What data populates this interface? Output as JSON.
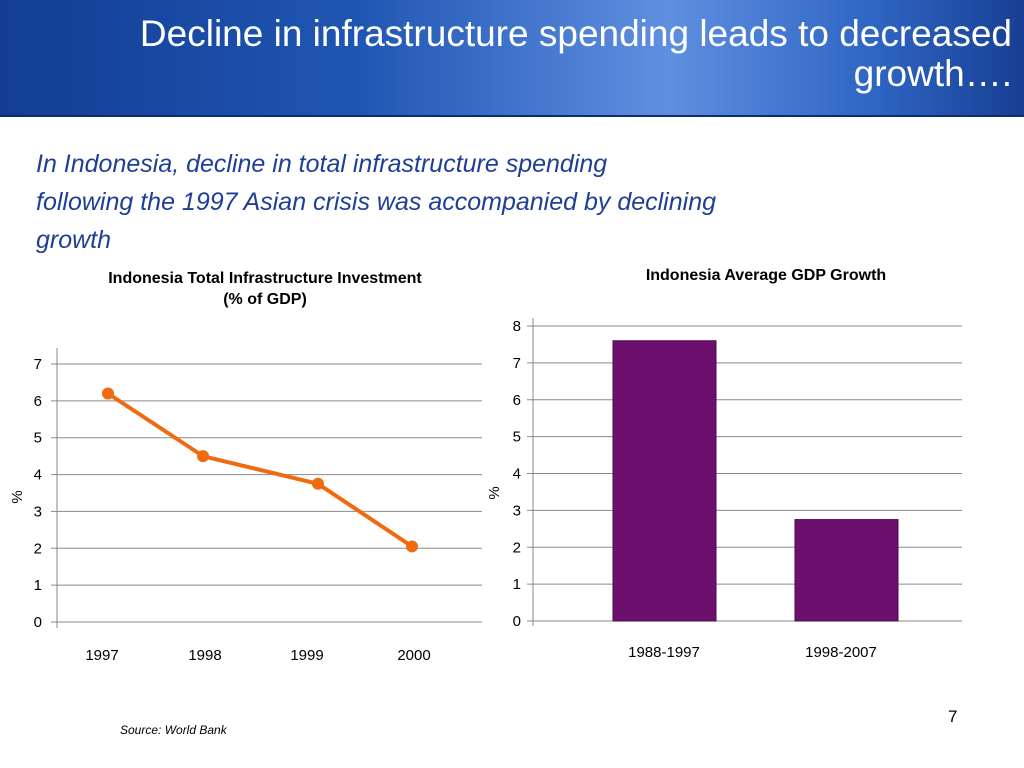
{
  "slide": {
    "title": "Decline in infrastructure spending leads to decreased growth….",
    "intro_lines": [
      "In Indonesia, decline in total infrastructure spending",
      "following the 1997 Asian crisis was accompanied by declining",
      "growth"
    ],
    "source": "Source: World Bank",
    "page_number": "7"
  },
  "colors": {
    "line_series": "#f06a0f",
    "bar_series": "#6d0f6d",
    "grid": "#8a8a8a",
    "text_blue": "#1f3f96"
  },
  "chart_data": [
    {
      "type": "line",
      "title_lines": [
        "Indonesia Total Infrastructure Investment",
        "(% of GDP)"
      ],
      "ylabel": "%",
      "categories": [
        "1997",
        "1998",
        "1999",
        "2000"
      ],
      "series": [
        {
          "values": [
            6.2,
            4.5,
            3.75,
            2.05
          ]
        }
      ],
      "ylim": [
        0,
        7
      ],
      "yticks": [
        "0",
        "1",
        "2",
        "3",
        "4",
        "5",
        "6",
        "7"
      ],
      "grid": true,
      "legend": "none"
    },
    {
      "type": "bar",
      "title_lines": [
        "Indonesia Average GDP Growth"
      ],
      "ylabel": "%",
      "categories": [
        "1988-1997",
        "1998-2007"
      ],
      "series": [
        {
          "values": [
            7.6,
            2.75
          ]
        }
      ],
      "ylim": [
        0,
        8
      ],
      "yticks": [
        "0",
        "1",
        "2",
        "3",
        "4",
        "5",
        "6",
        "7",
        "8"
      ],
      "grid": true,
      "legend": "none"
    }
  ]
}
